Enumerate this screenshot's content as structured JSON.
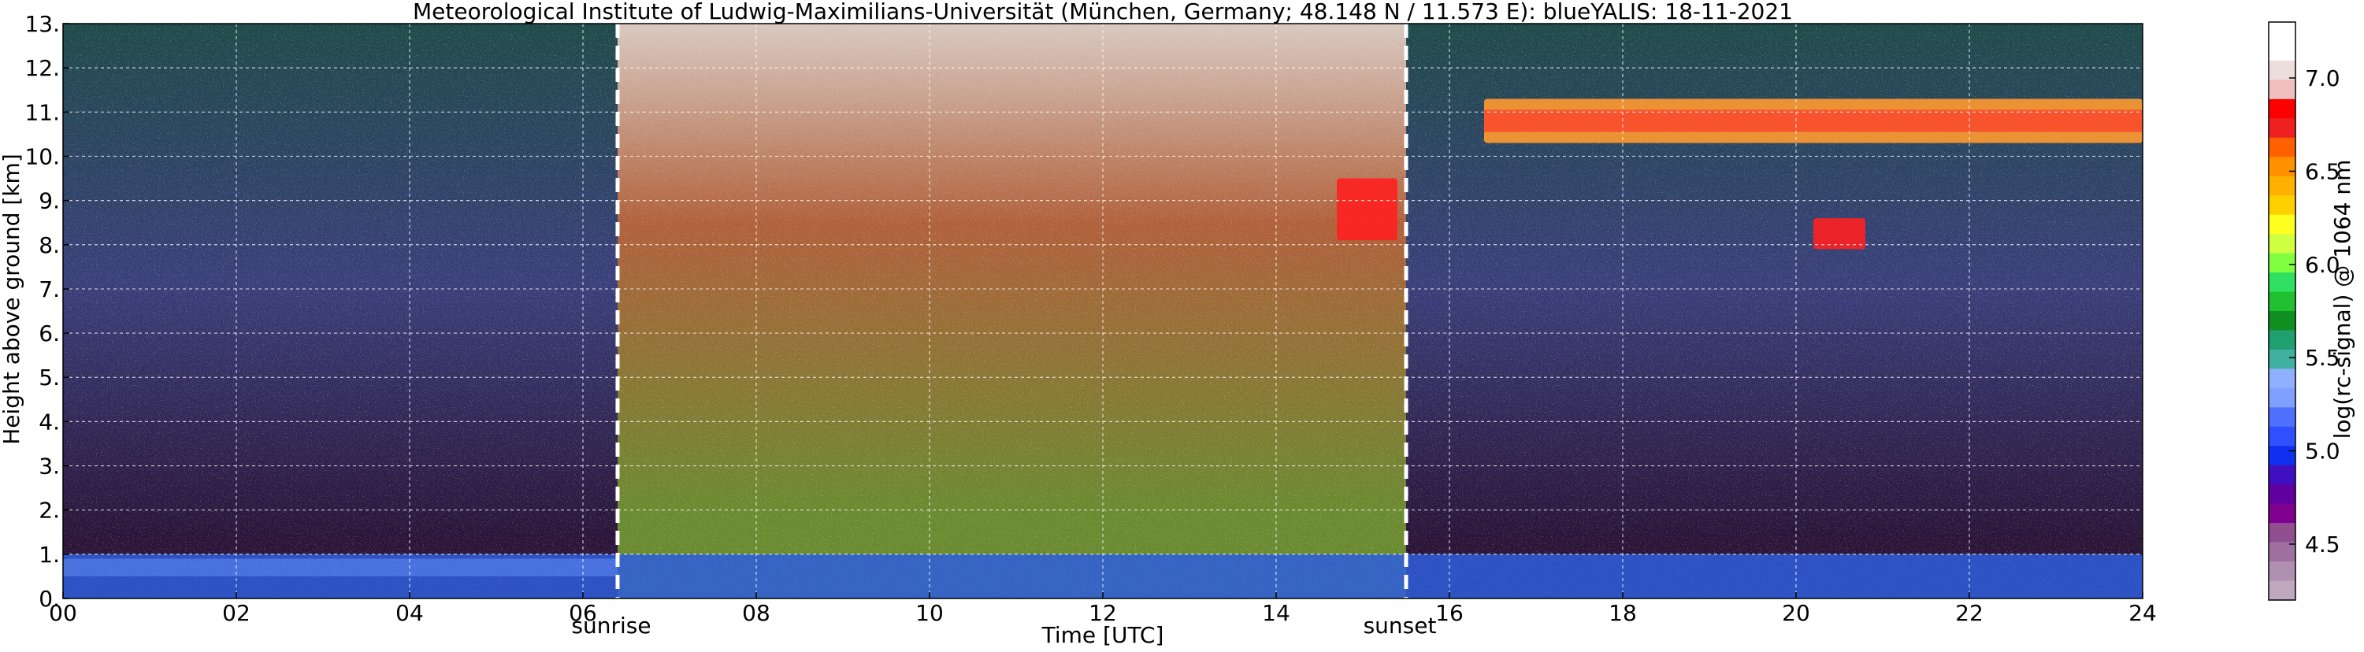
{
  "chart_data": {
    "type": "heatmap",
    "title": "Meteorological Institute of Ludwig-Maximilians-Universität (München, Germany; 48.148 N / 11.573 E):    blueYALIS: 18-11-2021",
    "xlabel": "Time [UTC]",
    "ylabel": "Height above ground [km]",
    "colorbar_label": "log(rc-signal) @ 1064 nm",
    "xlim": [
      0,
      24
    ],
    "ylim": [
      0,
      13
    ],
    "x_ticks": [
      "00",
      "02",
      "04",
      "06",
      "08",
      "10",
      "12",
      "14",
      "16",
      "18",
      "20",
      "22",
      "24"
    ],
    "y_ticks": [
      "0.",
      "1.",
      "2.",
      "3.",
      "4.",
      "5.",
      "6.",
      "7.",
      "8.",
      "9.",
      "10.",
      "11.",
      "12.",
      "13."
    ],
    "colorbar_ticks": [
      "4.5",
      "5.0",
      "5.5",
      "6.0",
      "6.5",
      "7.0"
    ],
    "colorbar_range": [
      4.2,
      7.3
    ],
    "grid": true,
    "markers": [
      {
        "label": "sunrise",
        "x": 6.4
      },
      {
        "label": "sunset",
        "x": 15.5
      }
    ],
    "colors": {
      "night_sky_top": "#1f4a4a",
      "night_sky_mid": "#3a3f7a",
      "night_sky_low": "#2a1438",
      "day_sky_top": "#d8c8c0",
      "day_sky_mid": "#b0603a",
      "day_sky_low": "#6a8a30",
      "boundary_layer": "#2f5fe0",
      "cloud_edge": "#ffffff",
      "cloud_core": "#ff2020"
    },
    "colorbar_colors": [
      "#ffffff",
      "#ffffff",
      "#eedddd",
      "#f0c0c0",
      "#ff0000",
      "#ee2020",
      "#ff6000",
      "#ff9000",
      "#ffb000",
      "#ffd000",
      "#ffff20",
      "#d0ff40",
      "#80ff40",
      "#30e060",
      "#20c030",
      "#109020",
      "#20a070",
      "#40b0a0",
      "#90b0ff",
      "#80a0ff",
      "#5070ff",
      "#3050ff",
      "#1030f0",
      "#4010c0",
      "#6000a0",
      "#800090",
      "#905090",
      "#a070a0",
      "#b090b0",
      "#c0a8c0"
    ],
    "features": [
      {
        "name": "cirrus-layer",
        "x_range": [
          16.4,
          24
        ],
        "height_km": [
          10.3,
          11.3
        ]
      },
      {
        "name": "cirrus-patch",
        "x_range": [
          20.2,
          20.8
        ],
        "height_km": [
          7.9,
          8.6
        ]
      },
      {
        "name": "cloud-streak",
        "x_range": [
          14.7,
          15.4
        ],
        "height_km": [
          8.1,
          9.5
        ]
      },
      {
        "name": "low-cloud-layer",
        "x_range": [
          0,
          6.4
        ],
        "height_km": [
          0.5,
          0.9
        ]
      },
      {
        "name": "boundary-layer",
        "x_range": [
          0,
          24
        ],
        "height_km": [
          0,
          1.0
        ]
      }
    ]
  }
}
